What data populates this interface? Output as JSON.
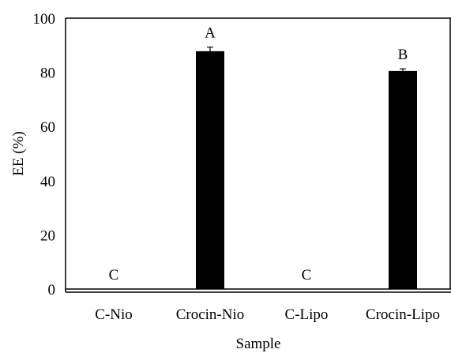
{
  "chart_data": {
    "type": "bar",
    "title": "",
    "xlabel": "Sample",
    "ylabel": "EE (%)",
    "ylim": [
      0,
      100
    ],
    "yticks": [
      0,
      20,
      40,
      60,
      80,
      100
    ],
    "grid": false,
    "categories": [
      "C-Nio",
      "Crocin-Nio",
      "C-Lipo",
      "Crocin-Lipo"
    ],
    "values": [
      0,
      87.8,
      0,
      80.5
    ],
    "errors": [
      0,
      1.5,
      0,
      0.8
    ],
    "significance_letters": [
      "C",
      "A",
      "C",
      "B"
    ],
    "bar_color": "#000000"
  }
}
